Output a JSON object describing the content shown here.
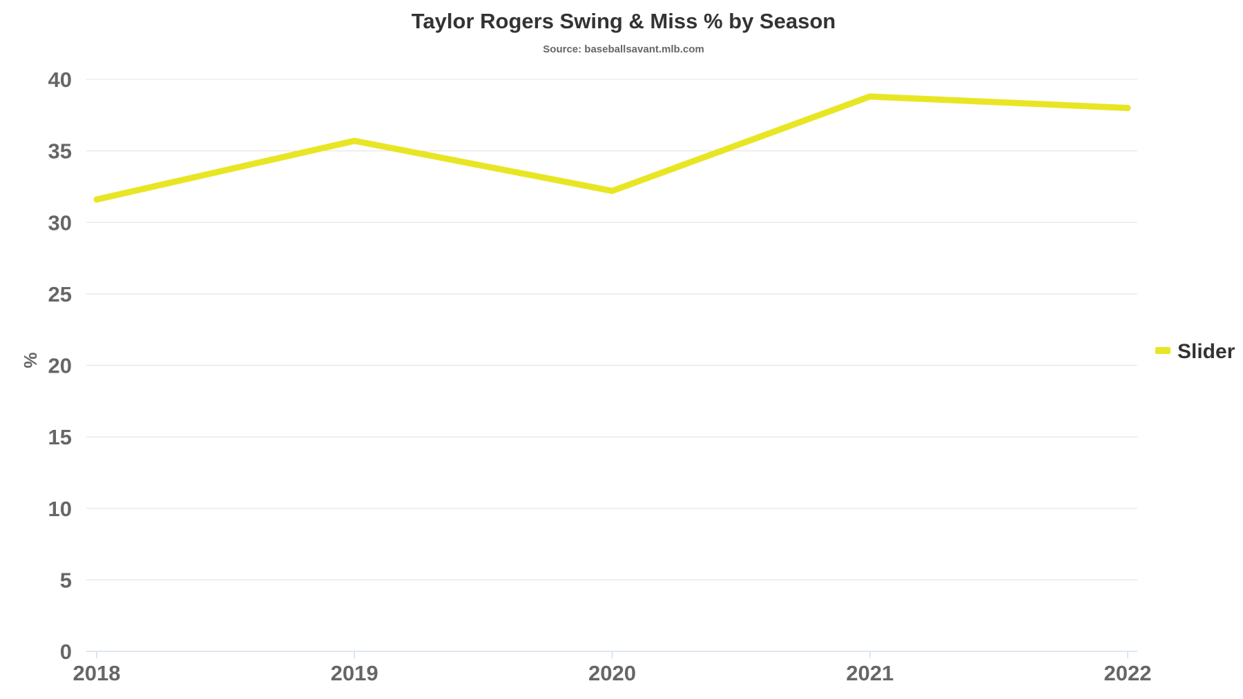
{
  "chart_data": {
    "type": "line",
    "title": "Taylor Rogers Swing & Miss % by Season",
    "subtitle": "Source: baseballsavant.mlb.com",
    "xlabel": "",
    "ylabel": "%",
    "categories": [
      "2018",
      "2019",
      "2020",
      "2021",
      "2022"
    ],
    "y_ticks": [
      "0",
      "5",
      "10",
      "15",
      "20",
      "25",
      "30",
      "35",
      "40"
    ],
    "ylim": [
      0,
      40
    ],
    "grid": true,
    "legend_position": "right",
    "series": [
      {
        "name": "Slider",
        "color": "#e8e624",
        "values": [
          31.6,
          35.7,
          32.2,
          38.8,
          38.0
        ]
      }
    ]
  }
}
